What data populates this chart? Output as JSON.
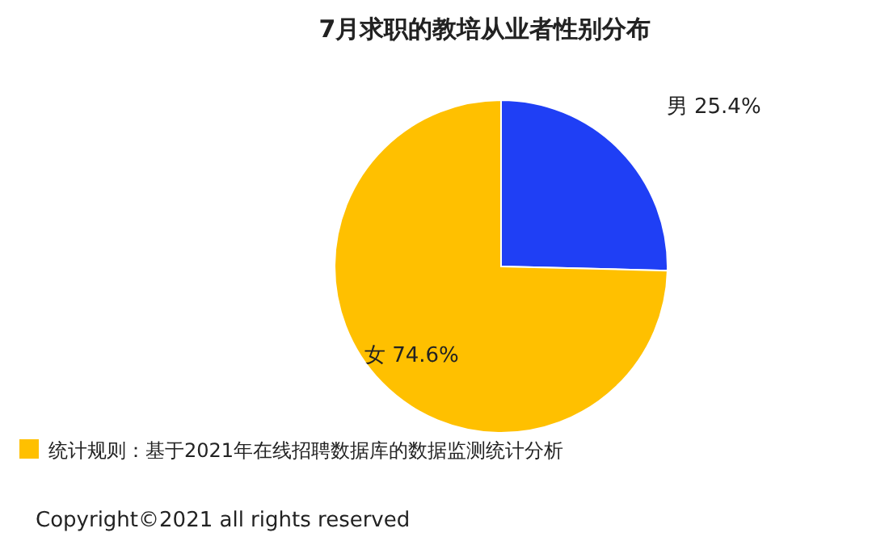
{
  "chart_data": {
    "type": "pie",
    "title": "7月求职的教培从业者性别分布",
    "categories": [
      "男",
      "女"
    ],
    "values": [
      25.4,
      74.6
    ],
    "colors": [
      "#1f3ff5",
      "#ffc000"
    ],
    "value_labels": [
      "25.4%",
      "74.6%"
    ],
    "annotations": [
      "统计规则：基于2021年在线招聘数据库的数据监测统计分析",
      "Copyright©2021 all rights reserved"
    ]
  }
}
